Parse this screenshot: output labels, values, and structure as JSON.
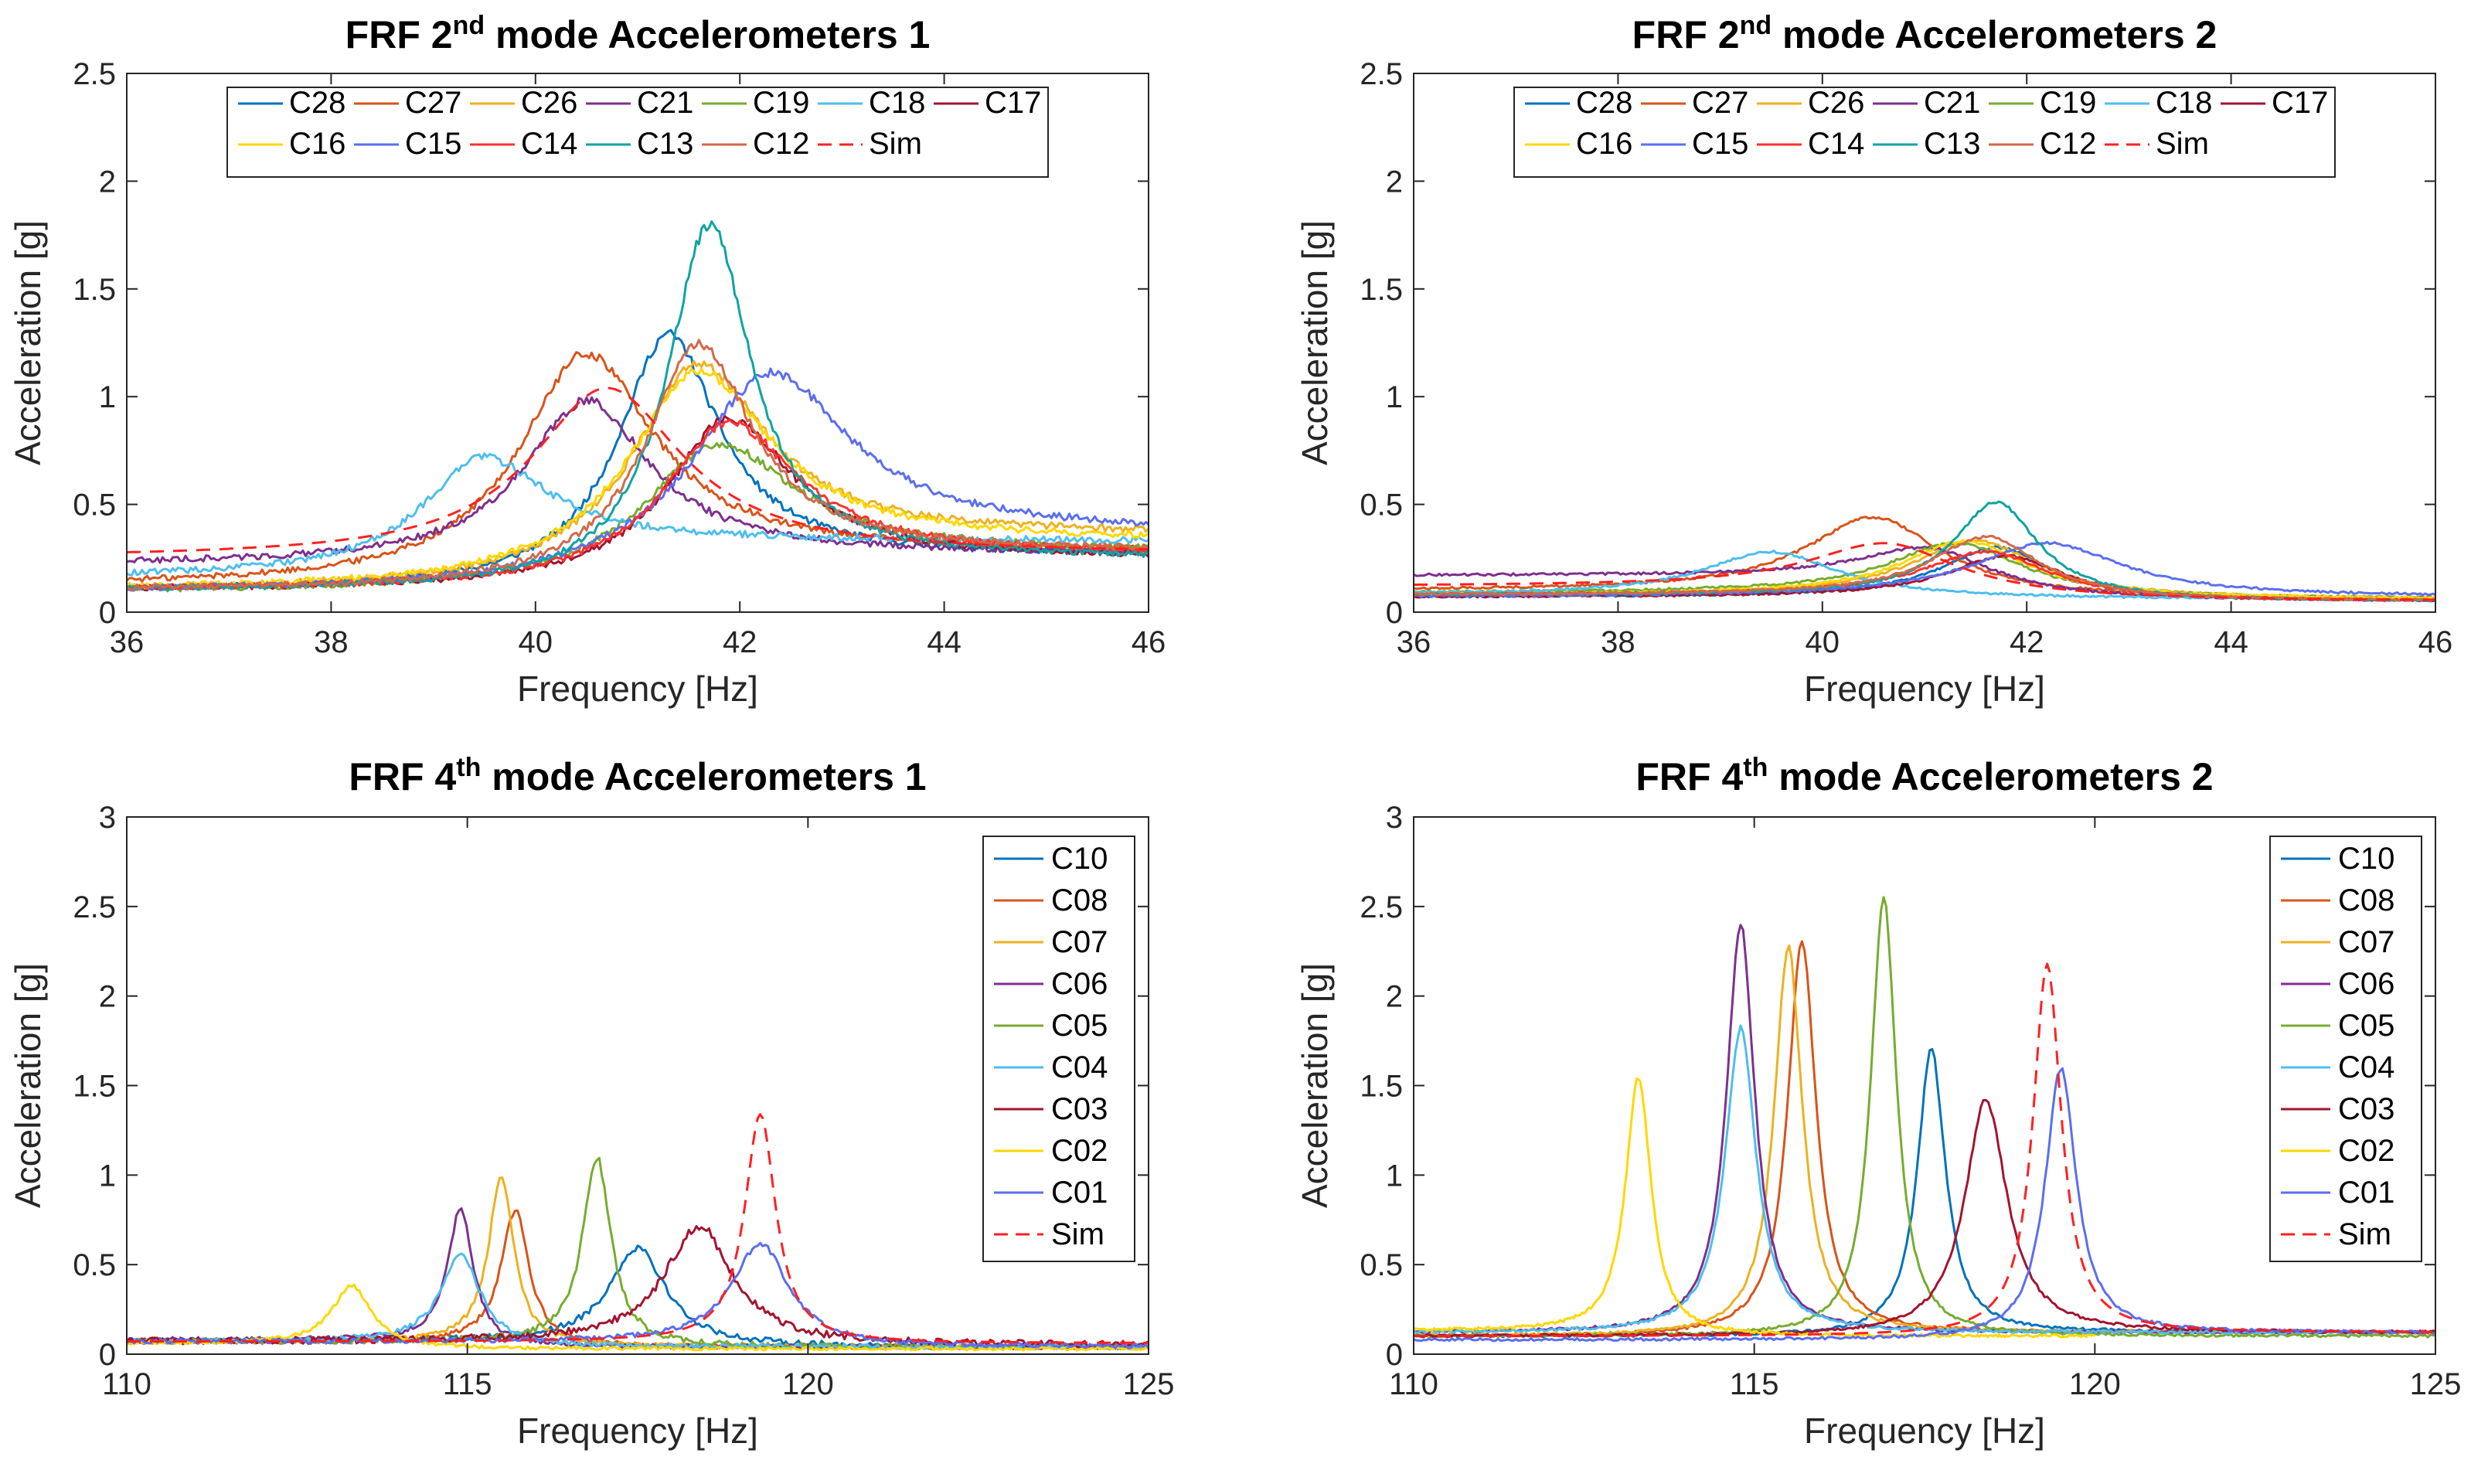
{
  "figure": {
    "colors": {
      "C28": "#0072BD",
      "C27": "#D95319",
      "C26": "#EDB120",
      "C21": "#7E2F8E",
      "C19": "#77AC30",
      "C18": "#4DBEEE",
      "C17": "#A2142F",
      "C16": "#FFD700",
      "C15": "#5B6EF0",
      "C14": "#FF3030",
      "C13": "#0FA3A3",
      "C12": "#D2694B",
      "C10": "#0072BD",
      "C08": "#D95319",
      "C07": "#EDB120",
      "C06": "#7E2F8E",
      "C05": "#77AC30",
      "C04": "#4DBEEE",
      "C03": "#A2142F",
      "C02": "#FFD700",
      "C01": "#5B6EF0",
      "Sim": "#FF2020"
    }
  },
  "chart_data": [
    {
      "id": "p1",
      "type": "line",
      "title_prefix": "FRF 2",
      "title_sup": "nd",
      "title_suffix": " mode Accelerometers 1",
      "xlabel": "Frequency [Hz]",
      "ylabel": "Acceleration [g]",
      "xlim": [
        36,
        46
      ],
      "ylim": [
        0,
        2.5
      ],
      "xticks": [
        36,
        38,
        40,
        42,
        44,
        46
      ],
      "yticks": [
        0,
        0.5,
        1,
        1.5,
        2,
        2.5
      ],
      "legend_location": "top",
      "legend_columns": 7,
      "series": [
        {
          "name": "C28",
          "peak_x": 41.3,
          "peak_y": 1.29,
          "baseline": 0.1,
          "tail": 0.26,
          "width": 1.2,
          "noise": 0.02
        },
        {
          "name": "C27",
          "peak_x": 40.5,
          "peak_y": 1.2,
          "baseline": 0.12,
          "tail": 0.28,
          "width": 1.6,
          "noise": 0.02
        },
        {
          "name": "C26",
          "peak_x": 41.6,
          "peak_y": 1.15,
          "baseline": 0.1,
          "tail": 0.36,
          "width": 1.6,
          "noise": 0.02
        },
        {
          "name": "C21",
          "peak_x": 40.5,
          "peak_y": 0.98,
          "baseline": 0.22,
          "tail": 0.27,
          "width": 1.5,
          "noise": 0.02
        },
        {
          "name": "C19",
          "peak_x": 41.8,
          "peak_y": 0.78,
          "baseline": 0.09,
          "tail": 0.28,
          "width": 1.8,
          "noise": 0.02
        },
        {
          "name": "C18",
          "peak_x": 39.5,
          "peak_y": 0.72,
          "baseline": 0.16,
          "tail": 0.33,
          "width": 1.5,
          "noise": 0.02
        },
        {
          "name": "C17",
          "peak_x": 41.9,
          "peak_y": 0.9,
          "baseline": 0.1,
          "tail": 0.25,
          "width": 1.5,
          "noise": 0.02
        },
        {
          "name": "C16",
          "peak_x": 41.6,
          "peak_y": 1.12,
          "baseline": 0.1,
          "tail": 0.33,
          "width": 1.7,
          "noise": 0.02
        },
        {
          "name": "C15",
          "peak_x": 42.3,
          "peak_y": 1.11,
          "baseline": 0.09,
          "tail": 0.37,
          "width": 1.9,
          "noise": 0.02
        },
        {
          "name": "C14",
          "peak_x": 41.9,
          "peak_y": 0.88,
          "baseline": 0.1,
          "tail": 0.27,
          "width": 1.6,
          "noise": 0.02
        },
        {
          "name": "C13",
          "peak_x": 41.7,
          "peak_y": 1.8,
          "baseline": 0.1,
          "tail": 0.25,
          "width": 1.0,
          "noise": 0.02
        },
        {
          "name": "C12",
          "peak_x": 41.6,
          "peak_y": 1.24,
          "baseline": 0.1,
          "tail": 0.28,
          "width": 1.3,
          "noise": 0.02
        },
        {
          "name": "Sim",
          "peak_x": 40.7,
          "peak_y": 1.04,
          "baseline": 0.25,
          "tail": 0.27,
          "width": 1.8,
          "noise": 0,
          "dashed": true
        }
      ]
    },
    {
      "id": "p2",
      "type": "line",
      "title_prefix": "FRF 2",
      "title_sup": "nd",
      "title_suffix": " mode Accelerometers 2",
      "xlabel": "Frequency [Hz]",
      "ylabel": "Acceleration [g]",
      "xlim": [
        36,
        46
      ],
      "ylim": [
        0,
        2.5
      ],
      "xticks": [
        36,
        38,
        40,
        42,
        44,
        46
      ],
      "yticks": [
        0,
        0.5,
        1,
        1.5,
        2,
        2.5
      ],
      "legend_location": "top",
      "legend_columns": 7,
      "series": [
        {
          "name": "C28",
          "peak_x": 41.7,
          "peak_y": 0.3,
          "baseline": 0.07,
          "tail": 0.05,
          "width": 1.3,
          "noise": 0.008
        },
        {
          "name": "C27",
          "peak_x": 40.5,
          "peak_y": 0.44,
          "baseline": 0.1,
          "tail": 0.06,
          "width": 1.6,
          "noise": 0.008
        },
        {
          "name": "C26",
          "peak_x": 41.5,
          "peak_y": 0.33,
          "baseline": 0.08,
          "tail": 0.06,
          "width": 1.5,
          "noise": 0.008
        },
        {
          "name": "C21",
          "peak_x": 41.0,
          "peak_y": 0.3,
          "baseline": 0.17,
          "tail": 0.05,
          "width": 1.6,
          "noise": 0.008
        },
        {
          "name": "C19",
          "peak_x": 41.3,
          "peak_y": 0.32,
          "baseline": 0.09,
          "tail": 0.06,
          "width": 1.6,
          "noise": 0.008
        },
        {
          "name": "C18",
          "peak_x": 39.5,
          "peak_y": 0.28,
          "baseline": 0.08,
          "tail": 0.06,
          "width": 1.6,
          "noise": 0.008
        },
        {
          "name": "C17",
          "peak_x": 41.8,
          "peak_y": 0.26,
          "baseline": 0.07,
          "tail": 0.05,
          "width": 1.4,
          "noise": 0.008
        },
        {
          "name": "C16",
          "peak_x": 41.4,
          "peak_y": 0.33,
          "baseline": 0.08,
          "tail": 0.06,
          "width": 1.5,
          "noise": 0.008
        },
        {
          "name": "C15",
          "peak_x": 42.2,
          "peak_y": 0.32,
          "baseline": 0.07,
          "tail": 0.07,
          "width": 1.8,
          "noise": 0.008
        },
        {
          "name": "C14",
          "peak_x": 41.6,
          "peak_y": 0.28,
          "baseline": 0.08,
          "tail": 0.05,
          "width": 1.5,
          "noise": 0.008
        },
        {
          "name": "C13",
          "peak_x": 41.7,
          "peak_y": 0.51,
          "baseline": 0.08,
          "tail": 0.05,
          "width": 1.0,
          "noise": 0.008
        },
        {
          "name": "C12",
          "peak_x": 41.6,
          "peak_y": 0.35,
          "baseline": 0.08,
          "tail": 0.05,
          "width": 1.3,
          "noise": 0.008
        },
        {
          "name": "Sim",
          "peak_x": 40.6,
          "peak_y": 0.32,
          "baseline": 0.12,
          "tail": 0.05,
          "width": 1.8,
          "noise": 0,
          "dashed": true
        }
      ]
    },
    {
      "id": "p3",
      "type": "line",
      "title_prefix": "FRF 4",
      "title_sup": "th",
      "title_suffix": " mode Accelerometers 1",
      "xlabel": "Frequency [Hz]",
      "ylabel": "Acceleration [g]",
      "xlim": [
        110,
        125
      ],
      "ylim": [
        0,
        3
      ],
      "xticks": [
        110,
        115,
        120,
        125
      ],
      "yticks": [
        0,
        0.5,
        1,
        1.5,
        2,
        2.5,
        3
      ],
      "legend_location": "right",
      "legend_columns": 1,
      "series": [
        {
          "name": "C10",
          "peak_x": 117.5,
          "peak_y": 0.6,
          "baseline": 0.07,
          "tail": 0.04,
          "width": 1.0,
          "noise": 0.025
        },
        {
          "name": "C08",
          "peak_x": 115.7,
          "peak_y": 0.8,
          "baseline": 0.07,
          "tail": 0.04,
          "width": 0.5,
          "noise": 0.02
        },
        {
          "name": "C07",
          "peak_x": 115.5,
          "peak_y": 1.0,
          "baseline": 0.07,
          "tail": 0.04,
          "width": 0.45,
          "noise": 0.02
        },
        {
          "name": "C06",
          "peak_x": 114.9,
          "peak_y": 0.82,
          "baseline": 0.08,
          "tail": 0.04,
          "width": 0.45,
          "noise": 0.02
        },
        {
          "name": "C05",
          "peak_x": 116.9,
          "peak_y": 1.1,
          "baseline": 0.07,
          "tail": 0.04,
          "width": 0.5,
          "noise": 0.025
        },
        {
          "name": "C04",
          "peak_x": 114.9,
          "peak_y": 0.56,
          "baseline": 0.07,
          "tail": 0.04,
          "width": 0.7,
          "noise": 0.02
        },
        {
          "name": "C03",
          "peak_x": 118.4,
          "peak_y": 0.72,
          "baseline": 0.07,
          "tail": 0.05,
          "width": 1.2,
          "noise": 0.03
        },
        {
          "name": "C02",
          "peak_x": 113.3,
          "peak_y": 0.38,
          "baseline": 0.06,
          "tail": 0.03,
          "width": 0.7,
          "noise": 0.015
        },
        {
          "name": "C01",
          "peak_x": 119.3,
          "peak_y": 0.62,
          "baseline": 0.07,
          "tail": 0.04,
          "width": 1.0,
          "noise": 0.02
        },
        {
          "name": "Sim",
          "peak_x": 119.3,
          "peak_y": 1.34,
          "baseline": 0.07,
          "tail": 0.06,
          "width": 0.55,
          "noise": 0,
          "dashed": true
        }
      ]
    },
    {
      "id": "p4",
      "type": "line",
      "title_prefix": "FRF 4",
      "title_sup": "th",
      "title_suffix": " mode Accelerometers 2",
      "xlabel": "Frequency [Hz]",
      "ylabel": "Acceleration [g]",
      "xlim": [
        110,
        125
      ],
      "ylim": [
        0,
        3
      ],
      "xticks": [
        110,
        115,
        120,
        125
      ],
      "yticks": [
        0,
        0.5,
        1,
        1.5,
        2,
        2.5,
        3
      ],
      "legend_location": "right",
      "legend_columns": 1,
      "series": [
        {
          "name": "C10",
          "peak_x": 117.6,
          "peak_y": 1.7,
          "baseline": 0.1,
          "tail": 0.12,
          "width": 0.5,
          "noise": 0.012
        },
        {
          "name": "C08",
          "peak_x": 115.7,
          "peak_y": 2.32,
          "baseline": 0.1,
          "tail": 0.12,
          "width": 0.5,
          "noise": 0.012
        },
        {
          "name": "C07",
          "peak_x": 115.5,
          "peak_y": 2.28,
          "baseline": 0.1,
          "tail": 0.12,
          "width": 0.5,
          "noise": 0.012
        },
        {
          "name": "C06",
          "peak_x": 114.8,
          "peak_y": 2.4,
          "baseline": 0.12,
          "tail": 0.12,
          "width": 0.5,
          "noise": 0.012
        },
        {
          "name": "C05",
          "peak_x": 116.9,
          "peak_y": 2.56,
          "baseline": 0.1,
          "tail": 0.1,
          "width": 0.45,
          "noise": 0.012
        },
        {
          "name": "C04",
          "peak_x": 114.8,
          "peak_y": 1.82,
          "baseline": 0.12,
          "tail": 0.12,
          "width": 0.55,
          "noise": 0.012
        },
        {
          "name": "C03",
          "peak_x": 118.4,
          "peak_y": 1.42,
          "baseline": 0.1,
          "tail": 0.12,
          "width": 0.75,
          "noise": 0.012
        },
        {
          "name": "C02",
          "peak_x": 113.3,
          "peak_y": 1.55,
          "baseline": 0.13,
          "tail": 0.1,
          "width": 0.45,
          "noise": 0.012,
          "x_end": 120
        },
        {
          "name": "C01",
          "peak_x": 119.5,
          "peak_y": 1.6,
          "baseline": 0.08,
          "tail": 0.12,
          "width": 0.55,
          "noise": 0.012
        },
        {
          "name": "Sim",
          "peak_x": 119.3,
          "peak_y": 2.18,
          "baseline": 0.1,
          "tail": 0.12,
          "width": 0.5,
          "noise": 0,
          "dashed": true
        }
      ]
    }
  ]
}
